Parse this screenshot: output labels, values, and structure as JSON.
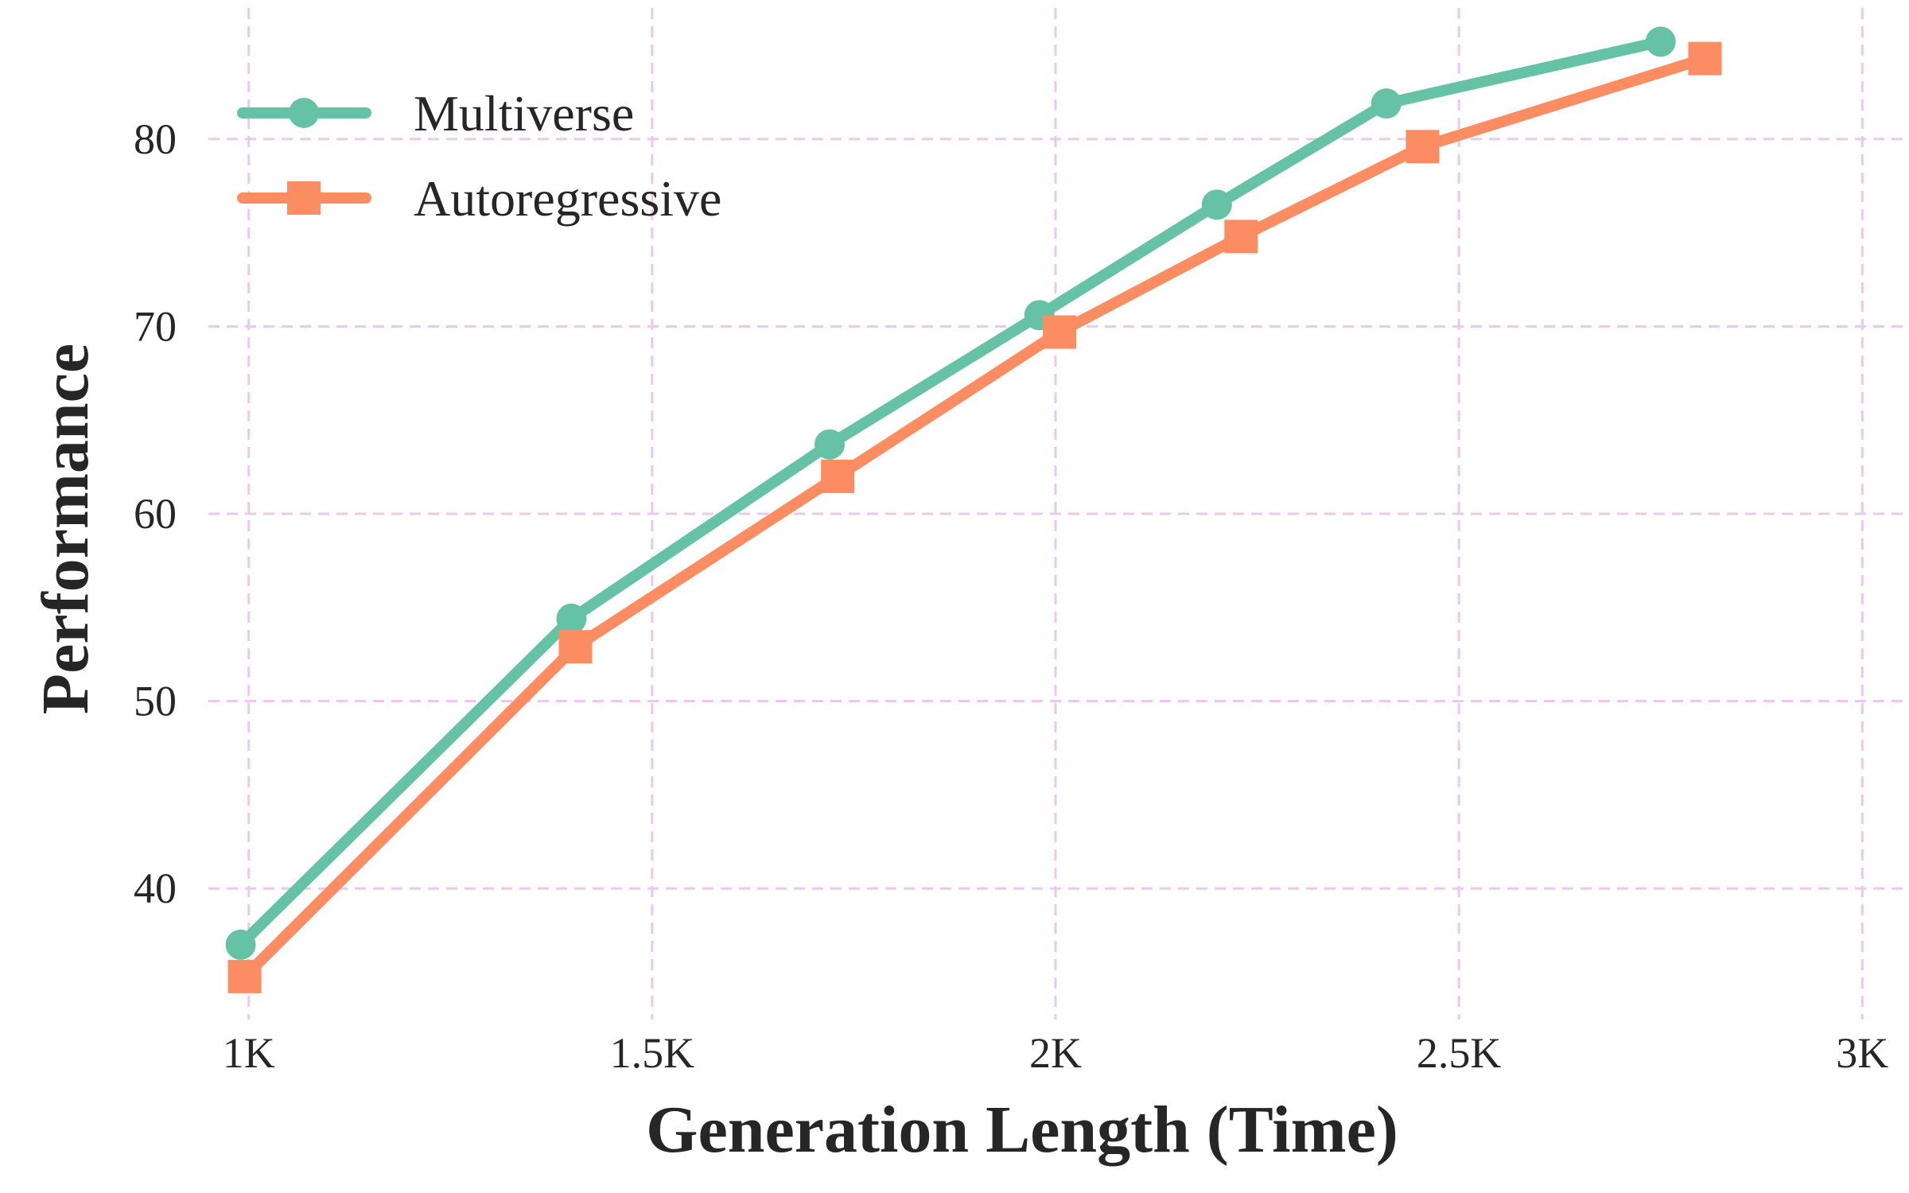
{
  "chart_data": {
    "type": "line",
    "title": "",
    "xlabel": "Generation Length (Time)",
    "ylabel": "Performance",
    "xlim": [
      950,
      3050
    ],
    "ylim": [
      33,
      87
    ],
    "xticks": [
      1000,
      1500,
      2000,
      2500,
      3000
    ],
    "xtick_labels": [
      "1K",
      "1.5K",
      "2K",
      "2.5K",
      "3K"
    ],
    "yticks": [
      40,
      50,
      60,
      70,
      80
    ],
    "ytick_labels": [
      "40",
      "50",
      "60",
      "70",
      "80"
    ],
    "grid": true,
    "grid_color": "#ebc8ee",
    "legend_position": "upper-left",
    "series": [
      {
        "name": "Multiverse",
        "color": "#66c2a5",
        "marker": "circle",
        "x": [
          990,
          1400,
          1720,
          1980,
          2200,
          2410,
          2750
        ],
        "y": [
          37.0,
          54.4,
          63.7,
          70.6,
          76.5,
          81.9,
          85.2
        ]
      },
      {
        "name": "Autoregressive",
        "color": "#fc8d62",
        "marker": "square",
        "x": [
          995,
          1405,
          1730,
          2005,
          2230,
          2455,
          2805
        ],
        "y": [
          35.3,
          52.9,
          62.0,
          69.7,
          74.8,
          79.6,
          84.3
        ]
      }
    ]
  }
}
